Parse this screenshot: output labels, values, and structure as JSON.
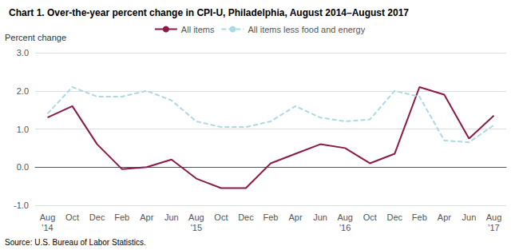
{
  "chart_data": {
    "type": "line",
    "title": "Chart 1. Over-the-year percent change in CPI-U, Philadelphia, August 2014–August 2017",
    "y_label": "Percent change",
    "source": "Source: U.S. Bureau of Labor Statistics.",
    "categories": [
      "Aug\n'14",
      "Oct",
      "Dec",
      "Feb",
      "Apr",
      "Jun",
      "Aug\n'15",
      "Oct",
      "Dec",
      "Feb",
      "Apr",
      "Jun",
      "Aug\n'16",
      "Oct",
      "Dec",
      "Feb",
      "Apr",
      "Jun",
      "Aug\n'17"
    ],
    "series": [
      {
        "name": "All items",
        "color": "#8B1A4A",
        "line_style": "solid",
        "values": [
          1.3,
          1.6,
          0.6,
          -0.05,
          0.0,
          0.2,
          -0.3,
          -0.55,
          -0.55,
          0.1,
          0.35,
          0.6,
          0.5,
          0.1,
          0.35,
          2.1,
          1.9,
          0.75,
          1.35
        ]
      },
      {
        "name": "All items less food and energy",
        "color": "#ADD8E6",
        "line_style": "dashed",
        "values": [
          1.4,
          2.1,
          1.85,
          1.85,
          2.0,
          1.75,
          1.2,
          1.05,
          1.05,
          1.2,
          1.6,
          1.3,
          1.2,
          1.25,
          2.0,
          1.85,
          0.7,
          0.65,
          1.1
        ]
      }
    ],
    "ylim": [
      -1.0,
      3.0
    ],
    "yticks": [
      {
        "value": -1.0,
        "label": "-1.0"
      },
      {
        "value": 0.0,
        "label": "0.0"
      },
      {
        "value": 1.0,
        "label": "1.0"
      },
      {
        "value": 2.0,
        "label": "2.0"
      },
      {
        "value": 3.0,
        "label": "3.0"
      }
    ],
    "grid": true,
    "legend": "top"
  }
}
